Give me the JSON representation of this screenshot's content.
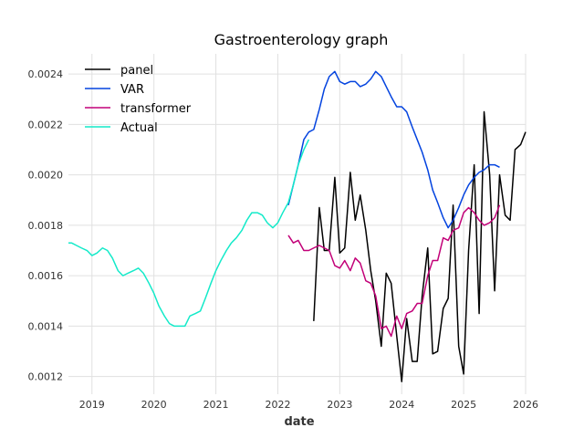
{
  "chart_data": {
    "type": "line",
    "title": "Gastroenterology graph",
    "xlabel": "date",
    "ylabel": "",
    "xlim": [
      2018.62,
      2026.0
    ],
    "ylim": [
      0.00113,
      0.00248
    ],
    "x_ticks": [
      2019,
      2020,
      2021,
      2022,
      2023,
      2024,
      2025,
      2026
    ],
    "x_tick_labels": [
      "2019",
      "2020",
      "2021",
      "2022",
      "2023",
      "2024",
      "2025",
      "2026"
    ],
    "y_ticks": [
      0.0012,
      0.0014,
      0.0016,
      0.0018,
      0.002,
      0.0022,
      0.0024
    ],
    "y_tick_labels": [
      "0.0012",
      "0.0014",
      "0.0016",
      "0.0018",
      "0.0020",
      "0.0022",
      "0.0024"
    ],
    "grid": true,
    "legend_position": "top-left",
    "series": [
      {
        "name": "panel",
        "color": "#000000",
        "x": [
          2022.58,
          2022.67,
          2022.75,
          2022.83,
          2022.92,
          2023.0,
          2023.08,
          2023.17,
          2023.25,
          2023.33,
          2023.42,
          2023.5,
          2023.58,
          2023.67,
          2023.75,
          2023.83,
          2023.92,
          2024.0,
          2024.08,
          2024.17,
          2024.25,
          2024.33,
          2024.42,
          2024.5,
          2024.58,
          2024.67,
          2024.75,
          2024.83,
          2024.92,
          2025.0,
          2025.08,
          2025.17,
          2025.25,
          2025.33,
          2025.42,
          2025.5,
          2025.58,
          2025.67,
          2025.75,
          2025.83,
          2025.92,
          2026.0
        ],
        "y": [
          0.00142,
          0.00187,
          0.0017,
          0.0017,
          0.00199,
          0.00169,
          0.00171,
          0.00201,
          0.00182,
          0.00192,
          0.00178,
          0.00162,
          0.0015,
          0.00132,
          0.00161,
          0.00157,
          0.00136,
          0.00118,
          0.00143,
          0.00126,
          0.00126,
          0.00152,
          0.00171,
          0.00129,
          0.0013,
          0.00147,
          0.00151,
          0.00188,
          0.00132,
          0.00121,
          0.0017,
          0.00204,
          0.00145,
          0.00225,
          0.002,
          0.00154,
          0.002,
          0.00184,
          0.00182,
          0.0021,
          0.00212,
          0.00217
        ]
      },
      {
        "name": "VAR",
        "color": "#0343df",
        "x": [
          2022.17,
          2022.25,
          2022.33,
          2022.42,
          2022.5,
          2022.58,
          2022.67,
          2022.75,
          2022.83,
          2022.92,
          2023.0,
          2023.08,
          2023.17,
          2023.25,
          2023.33,
          2023.42,
          2023.5,
          2023.58,
          2023.67,
          2023.75,
          2023.83,
          2023.92,
          2024.0,
          2024.08,
          2024.17,
          2024.25,
          2024.33,
          2024.42,
          2024.5,
          2024.58,
          2024.67,
          2024.75,
          2024.83,
          2024.92,
          2025.0,
          2025.08,
          2025.17,
          2025.25,
          2025.33,
          2025.42,
          2025.5,
          2025.58
        ],
        "y": [
          0.00188,
          0.00196,
          0.00204,
          0.00214,
          0.00217,
          0.00218,
          0.00226,
          0.00234,
          0.00239,
          0.00241,
          0.00237,
          0.00236,
          0.00237,
          0.00237,
          0.00235,
          0.00236,
          0.00238,
          0.00241,
          0.00239,
          0.00235,
          0.00231,
          0.00227,
          0.00227,
          0.00225,
          0.00219,
          0.00214,
          0.00209,
          0.00202,
          0.00194,
          0.00189,
          0.00183,
          0.00179,
          0.00182,
          0.00187,
          0.00192,
          0.00196,
          0.00199,
          0.00201,
          0.00202,
          0.00204,
          0.00204,
          0.00203
        ]
      },
      {
        "name": "transformer",
        "color": "#c20078",
        "x": [
          2022.17,
          2022.25,
          2022.33,
          2022.42,
          2022.5,
          2022.58,
          2022.67,
          2022.75,
          2022.83,
          2022.92,
          2023.0,
          2023.08,
          2023.17,
          2023.25,
          2023.33,
          2023.42,
          2023.5,
          2023.58,
          2023.67,
          2023.75,
          2023.83,
          2023.92,
          2024.0,
          2024.08,
          2024.17,
          2024.25,
          2024.33,
          2024.42,
          2024.5,
          2024.58,
          2024.67,
          2024.75,
          2024.83,
          2024.92,
          2025.0,
          2025.08,
          2025.17,
          2025.25,
          2025.33,
          2025.42,
          2025.5,
          2025.58
        ],
        "y": [
          0.00176,
          0.00173,
          0.00174,
          0.0017,
          0.0017,
          0.00171,
          0.00172,
          0.00171,
          0.0017,
          0.00164,
          0.00163,
          0.00166,
          0.00162,
          0.00167,
          0.00165,
          0.00158,
          0.00157,
          0.00152,
          0.00139,
          0.0014,
          0.00136,
          0.00144,
          0.00139,
          0.00145,
          0.00146,
          0.00149,
          0.00149,
          0.0016,
          0.00166,
          0.00166,
          0.00175,
          0.00174,
          0.00178,
          0.00179,
          0.00185,
          0.00187,
          0.00185,
          0.00182,
          0.0018,
          0.00181,
          0.00183,
          0.00188
        ]
      },
      {
        "name": "Actual",
        "color": "#13eac9",
        "x": [
          2018.62,
          2018.67,
          2018.75,
          2018.83,
          2018.92,
          2019.0,
          2019.08,
          2019.17,
          2019.25,
          2019.33,
          2019.42,
          2019.5,
          2019.58,
          2019.67,
          2019.75,
          2019.83,
          2019.92,
          2020.0,
          2020.08,
          2020.17,
          2020.25,
          2020.33,
          2020.42,
          2020.5,
          2020.58,
          2020.67,
          2020.75,
          2020.83,
          2020.92,
          2021.0,
          2021.08,
          2021.17,
          2021.25,
          2021.33,
          2021.42,
          2021.5,
          2021.58,
          2021.67,
          2021.75,
          2021.83,
          2021.92,
          2022.0,
          2022.08,
          2022.17,
          2022.25,
          2022.33,
          2022.42,
          2022.5
        ],
        "y": [
          0.00173,
          0.00173,
          0.00172,
          0.00171,
          0.0017,
          0.00168,
          0.00169,
          0.00171,
          0.0017,
          0.00167,
          0.00162,
          0.0016,
          0.00161,
          0.00162,
          0.00163,
          0.00161,
          0.00157,
          0.00153,
          0.00148,
          0.00144,
          0.00141,
          0.0014,
          0.0014,
          0.0014,
          0.00144,
          0.00145,
          0.00146,
          0.00151,
          0.00157,
          0.00162,
          0.00166,
          0.0017,
          0.00173,
          0.00175,
          0.00178,
          0.00182,
          0.00185,
          0.00185,
          0.00184,
          0.00181,
          0.00179,
          0.00181,
          0.00185,
          0.00189,
          0.00196,
          0.00204,
          0.0021,
          0.00214
        ]
      }
    ]
  }
}
